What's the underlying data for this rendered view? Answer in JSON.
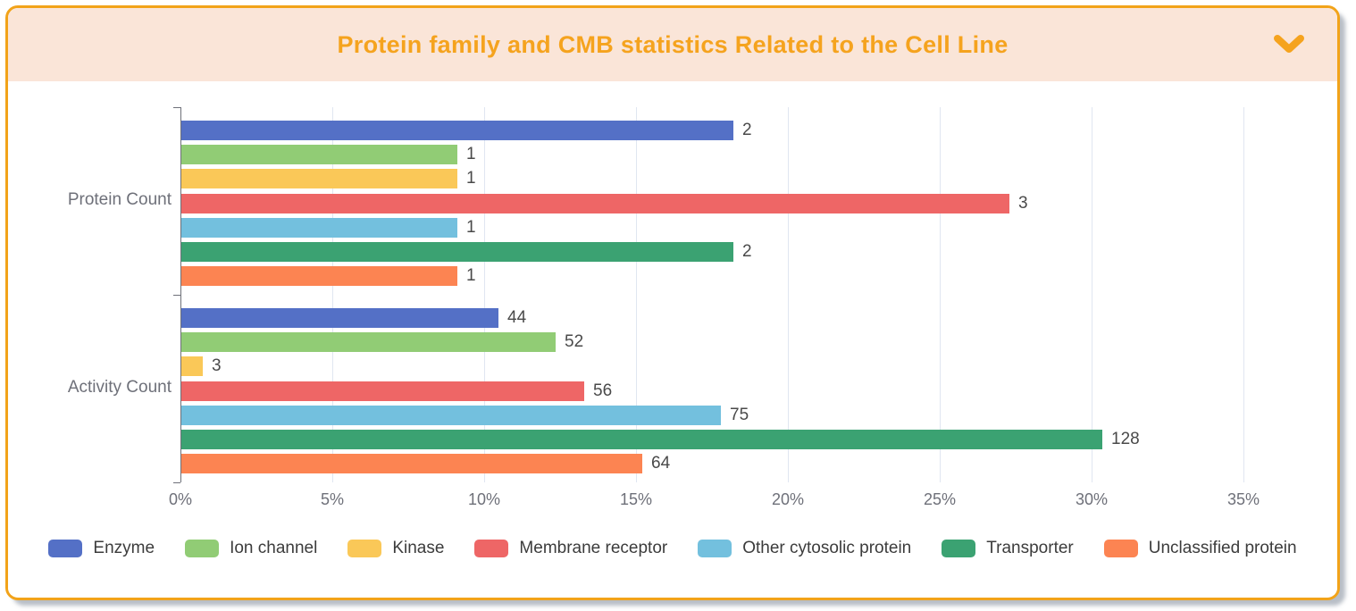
{
  "header": {
    "title": "Protein family and CMB statistics Related to the Cell Line",
    "collapse_icon": "chevron-down"
  },
  "colors": {
    "accent_orange": "#F5A31E",
    "panel_border": "#F2A319",
    "header_bg": "#FAE5D8",
    "grid_line": "#E0E6F1",
    "axis_line": "#6E7079",
    "tick_label": "#6E7079",
    "category_label": "#6E7079",
    "value_label": "#4A4A4A",
    "legend_label": "#3C3C3C"
  },
  "chart_data": {
    "type": "bar",
    "orientation": "horizontal",
    "title": "Protein family and CMB statistics Related to the Cell Line",
    "categories": [
      "Protein Count",
      "Activity Count"
    ],
    "series": [
      {
        "name": "Enzyme",
        "color": "#5470C6",
        "values": [
          2,
          44
        ]
      },
      {
        "name": "Ion channel",
        "color": "#91CC75",
        "values": [
          1,
          52
        ]
      },
      {
        "name": "Kinase",
        "color": "#FAC858",
        "values": [
          1,
          3
        ]
      },
      {
        "name": "Membrane receptor",
        "color": "#EE6666",
        "values": [
          3,
          56
        ]
      },
      {
        "name": "Other cytosolic protein",
        "color": "#73C0DE",
        "values": [
          1,
          75
        ]
      },
      {
        "name": "Transporter",
        "color": "#3BA272",
        "values": [
          2,
          128
        ]
      },
      {
        "name": "Unclassified protein",
        "color": "#FC8452",
        "values": [
          1,
          64
        ]
      }
    ],
    "x_axis": {
      "unit": "%",
      "min": 0,
      "max": 35,
      "tick_step": 5,
      "tick_labels": [
        "0%",
        "5%",
        "10%",
        "15%",
        "20%",
        "25%",
        "30%",
        "35%"
      ],
      "note": "bar length is the value's percent share of its category total; data labels show raw counts"
    },
    "grid": true,
    "legend_position": "bottom"
  }
}
